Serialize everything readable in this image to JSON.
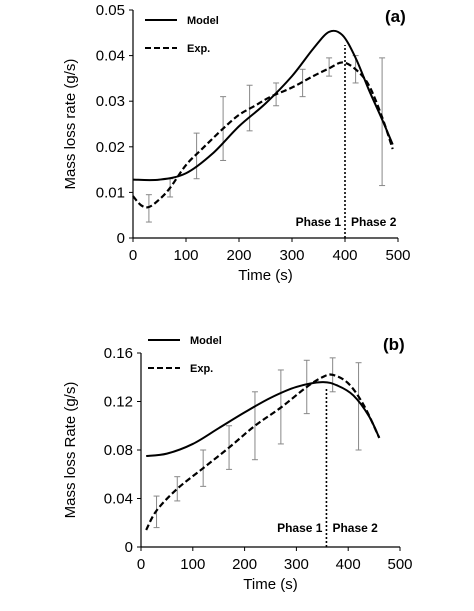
{
  "chart_data": [
    {
      "type": "line",
      "panel_label": "(a)",
      "xlabel": "Time (s)",
      "ylabel": "Mass loss rate (g/s)",
      "xlim": [
        0,
        500
      ],
      "ylim": [
        0,
        0.05
      ],
      "xticks": [
        "0",
        "100",
        "200",
        "300",
        "400",
        "500"
      ],
      "yticks": [
        "0",
        "0.01",
        "0.02",
        "0.03",
        "0.04",
        "0.05"
      ],
      "legend": {
        "placement": "top-left",
        "entries": [
          "Model",
          "Exp."
        ]
      },
      "phase_line_x": 400,
      "phase_labels": [
        "Phase 1",
        "Phase 2"
      ],
      "series": [
        {
          "name": "Model",
          "style": "solid",
          "x": [
            0,
            50,
            100,
            150,
            200,
            250,
            300,
            340,
            370,
            395,
            420,
            445,
            470,
            490
          ],
          "y": [
            0.0128,
            0.0128,
            0.0142,
            0.0185,
            0.0245,
            0.0295,
            0.0355,
            0.0415,
            0.0452,
            0.0445,
            0.0395,
            0.0325,
            0.026,
            0.0205
          ]
        },
        {
          "name": "Exp.",
          "style": "dashed",
          "x": [
            0,
            15,
            30,
            50,
            70,
            100,
            130,
            170,
            200,
            230,
            260,
            300,
            340,
            370,
            395,
            420,
            445,
            470,
            490
          ],
          "y": [
            0.0092,
            0.0072,
            0.0068,
            0.0085,
            0.011,
            0.016,
            0.0195,
            0.024,
            0.027,
            0.029,
            0.031,
            0.033,
            0.0355,
            0.0372,
            0.0385,
            0.037,
            0.0335,
            0.0265,
            0.0195
          ]
        }
      ],
      "error_bars": [
        {
          "x": 30,
          "y": 0.0068,
          "lo": 0.0035,
          "hi": 0.0095
        },
        {
          "x": 70,
          "y": 0.011,
          "lo": 0.009,
          "hi": 0.013
        },
        {
          "x": 120,
          "y": 0.018,
          "lo": 0.013,
          "hi": 0.023
        },
        {
          "x": 170,
          "y": 0.024,
          "lo": 0.017,
          "hi": 0.031
        },
        {
          "x": 220,
          "y": 0.0285,
          "lo": 0.0235,
          "hi": 0.0335
        },
        {
          "x": 270,
          "y": 0.0315,
          "lo": 0.029,
          "hi": 0.034
        },
        {
          "x": 320,
          "y": 0.034,
          "lo": 0.031,
          "hi": 0.037
        },
        {
          "x": 370,
          "y": 0.0375,
          "lo": 0.0355,
          "hi": 0.0395
        },
        {
          "x": 420,
          "y": 0.037,
          "lo": 0.034,
          "hi": 0.04
        },
        {
          "x": 470,
          "y": 0.0265,
          "lo": 0.0115,
          "hi": 0.0395
        }
      ]
    },
    {
      "type": "line",
      "panel_label": "(b)",
      "xlabel": "Time (s)",
      "ylabel": "Mass loss Rate (g/s)",
      "xlim": [
        0,
        500
      ],
      "ylim": [
        0,
        0.16
      ],
      "xticks": [
        "0",
        "100",
        "200",
        "300",
        "400",
        "500"
      ],
      "yticks": [
        "0",
        "0.04",
        "0.08",
        "0.12",
        "0.16"
      ],
      "legend": {
        "placement": "top-left",
        "entries": [
          "Model",
          "Exp."
        ]
      },
      "phase_line_x": 358,
      "phase_labels": [
        "Phase 1",
        "Phase 2"
      ],
      "series": [
        {
          "name": "Model",
          "style": "solid",
          "x": [
            10,
            50,
            100,
            150,
            200,
            250,
            300,
            350,
            380,
            410,
            440,
            460
          ],
          "y": [
            0.075,
            0.077,
            0.085,
            0.098,
            0.111,
            0.123,
            0.132,
            0.136,
            0.133,
            0.125,
            0.108,
            0.09
          ],
          "_note": ""
        },
        {
          "name": "Exp.",
          "style": "dashed",
          "x": [
            10,
            30,
            70,
            120,
            170,
            220,
            270,
            320,
            350,
            370,
            400,
            430,
            460
          ],
          "y": [
            0.014,
            0.03,
            0.048,
            0.065,
            0.082,
            0.1,
            0.115,
            0.132,
            0.14,
            0.142,
            0.135,
            0.117,
            0.09
          ]
        }
      ],
      "error_bars": [
        {
          "x": 30,
          "y": 0.03,
          "lo": 0.016,
          "hi": 0.042
        },
        {
          "x": 70,
          "y": 0.048,
          "lo": 0.038,
          "hi": 0.058
        },
        {
          "x": 120,
          "y": 0.065,
          "lo": 0.05,
          "hi": 0.08
        },
        {
          "x": 170,
          "y": 0.082,
          "lo": 0.064,
          "hi": 0.1
        },
        {
          "x": 220,
          "y": 0.1,
          "lo": 0.072,
          "hi": 0.128
        },
        {
          "x": 270,
          "y": 0.115,
          "lo": 0.085,
          "hi": 0.146
        },
        {
          "x": 320,
          "y": 0.132,
          "lo": 0.11,
          "hi": 0.154
        },
        {
          "x": 370,
          "y": 0.142,
          "lo": 0.128,
          "hi": 0.156
        },
        {
          "x": 420,
          "y": 0.125,
          "lo": 0.08,
          "hi": 0.152
        }
      ]
    }
  ]
}
